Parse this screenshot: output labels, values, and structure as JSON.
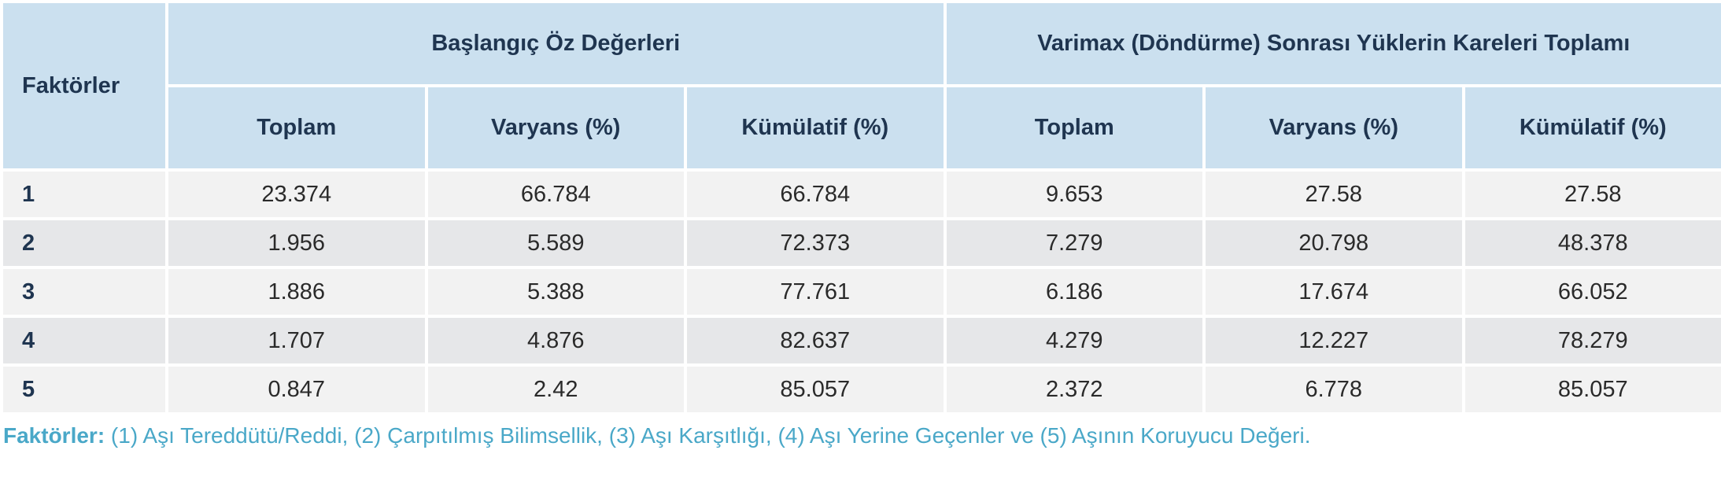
{
  "table": {
    "factor_header": "Faktörler",
    "group_headers": [
      "Başlangıç Öz Değerleri",
      "Varimax (Döndürme) Sonrası Yüklerin Kareleri Toplamı"
    ],
    "column_headers": [
      "Toplam",
      "Varyans (%)",
      "Kümülatif (%)",
      "Toplam",
      "Varyans (%)",
      "Kümülatif (%)"
    ],
    "rows": [
      {
        "factor": "1",
        "values": [
          "23.374",
          "66.784",
          "66.784",
          "9.653",
          "27.58",
          "27.58"
        ]
      },
      {
        "factor": "2",
        "values": [
          "1.956",
          "5.589",
          "72.373",
          "7.279",
          "20.798",
          "48.378"
        ]
      },
      {
        "factor": "3",
        "values": [
          "1.886",
          "5.388",
          "77.761",
          "6.186",
          "17.674",
          "66.052"
        ]
      },
      {
        "factor": "4",
        "values": [
          "1.707",
          "4.876",
          "82.637",
          "4.279",
          "12.227",
          "78.279"
        ]
      },
      {
        "factor": "5",
        "values": [
          "0.847",
          "2.42",
          "85.057",
          "2.372",
          "6.778",
          "85.057"
        ]
      }
    ]
  },
  "footnote": {
    "label": "Faktörler:",
    "text": " (1) Aşı Tereddütü/Reddi, (2) Çarpıtılmış Bilimsellik, (3) Aşı Karşıtlığı, (4) Aşı Yerine Geçenler ve (5) Aşının Koruyucu Değeri."
  },
  "colors": {
    "header_bg": "#cbe0ef",
    "header_text": "#1f3550",
    "row_light": "#f2f2f2",
    "row_dark": "#e6e7e9",
    "footnote_text": "#4aa8c8"
  }
}
